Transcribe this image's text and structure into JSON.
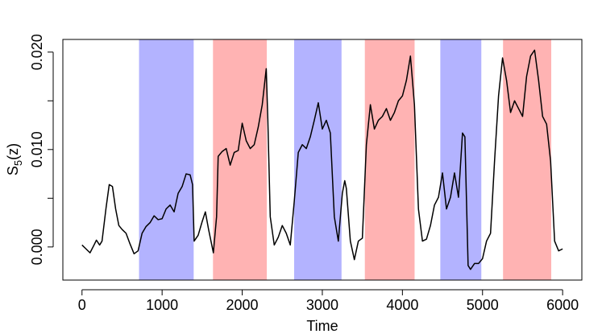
{
  "chart_data": {
    "type": "line",
    "xlabel": "Time",
    "ylabel": [
      "S",
      "5",
      "(z)"
    ],
    "xlim": [
      -239,
      6240
    ],
    "ylim": [
      -0.0034,
      0.0213
    ],
    "xticks": [
      0,
      1000,
      2000,
      3000,
      4000,
      5000,
      6000
    ],
    "yticks": [
      {
        "value": 0,
        "label": "0.000"
      },
      {
        "value": 0.005,
        "label": null
      },
      {
        "value": 0.01,
        "label": "0.010"
      },
      {
        "value": 0.015,
        "label": null
      },
      {
        "value": 0.02,
        "label": "0.020"
      }
    ],
    "color": "#000000",
    "regions": [
      {
        "start": 712,
        "end": 1394,
        "color": "#b3b3ff"
      },
      {
        "start": 1635,
        "end": 2307,
        "color": "#ffb3b3"
      },
      {
        "start": 2648,
        "end": 3240,
        "color": "#b3b3ff"
      },
      {
        "start": 3531,
        "end": 4152,
        "color": "#ffb3b3"
      },
      {
        "start": 4473,
        "end": 4985,
        "color": "#b3b3ff"
      },
      {
        "start": 5256,
        "end": 5858,
        "color": "#ffb3b3"
      }
    ],
    "x": [
      0,
      50,
      100,
      150,
      180,
      220,
      250,
      300,
      340,
      380,
      420,
      460,
      500,
      550,
      600,
      650,
      700,
      750,
      800,
      850,
      900,
      950,
      1000,
      1050,
      1100,
      1150,
      1200,
      1250,
      1300,
      1350,
      1380,
      1400,
      1450,
      1500,
      1540,
      1580,
      1640,
      1680,
      1700,
      1750,
      1800,
      1850,
      1900,
      1950,
      2000,
      2050,
      2100,
      2150,
      2200,
      2250,
      2300,
      2320,
      2350,
      2400,
      2450,
      2500,
      2550,
      2600,
      2650,
      2700,
      2750,
      2800,
      2850,
      2900,
      2950,
      3000,
      3050,
      3100,
      3150,
      3200,
      3250,
      3280,
      3300,
      3350,
      3400,
      3450,
      3500,
      3550,
      3600,
      3650,
      3700,
      3750,
      3800,
      3850,
      3900,
      3950,
      4000,
      4050,
      4100,
      4150,
      4200,
      4250,
      4300,
      4350,
      4400,
      4450,
      4500,
      4550,
      4600,
      4650,
      4700,
      4750,
      4780,
      4820,
      4850,
      4900,
      4950,
      5000,
      5050,
      5100,
      5150,
      5200,
      5250,
      5300,
      5350,
      5400,
      5450,
      5500,
      5550,
      5600,
      5650,
      5700,
      5750,
      5800,
      5850,
      5900,
      5950,
      6000
    ],
    "values": [
      0.0002,
      -0.0002,
      -0.0006,
      0.0002,
      0.0007,
      0.0002,
      0.0006,
      0.004,
      0.0064,
      0.0062,
      0.0039,
      0.0022,
      0.0018,
      0.0014,
      0.0003,
      -0.0007,
      -0.0004,
      0.0014,
      0.0021,
      0.0025,
      0.0032,
      0.0028,
      0.0029,
      0.0039,
      0.0043,
      0.0036,
      0.0055,
      0.0062,
      0.0075,
      0.0074,
      0.0064,
      0.0006,
      0.0012,
      0.0026,
      0.0036,
      0.0018,
      -0.0006,
      0.0031,
      0.0093,
      0.0098,
      0.0101,
      0.0084,
      0.0097,
      0.0099,
      0.0127,
      0.0109,
      0.0101,
      0.0105,
      0.0123,
      0.0146,
      0.0183,
      0.013,
      0.0031,
      0.0002,
      0.001,
      0.0022,
      0.0014,
      0.0002,
      0.0047,
      0.0097,
      0.0105,
      0.0101,
      0.0113,
      0.013,
      0.0148,
      0.0121,
      0.013,
      0.0117,
      0.0031,
      0.0006,
      0.0055,
      0.0068,
      0.006,
      0.0006,
      -0.0013,
      0.0006,
      0.0009,
      0.0105,
      0.0146,
      0.0121,
      0.013,
      0.0134,
      0.0142,
      0.013,
      0.0138,
      0.015,
      0.0155,
      0.0171,
      0.0196,
      0.0146,
      0.0039,
      0.0006,
      0.0008,
      0.0022,
      0.0043,
      0.0051,
      0.0076,
      0.0039,
      0.0051,
      0.0076,
      0.0051,
      0.0117,
      0.0113,
      -0.0019,
      -0.0023,
      -0.0017,
      -0.0017,
      -0.0012,
      0.0006,
      0.0014,
      0.0088,
      0.0155,
      0.0194,
      0.0171,
      0.0138,
      0.015,
      0.0142,
      0.0134,
      0.0175,
      0.0196,
      0.0202,
      0.0171,
      0.0134,
      0.0126,
      0.0088,
      0.0006,
      -0.0004,
      -0.0002
    ]
  }
}
